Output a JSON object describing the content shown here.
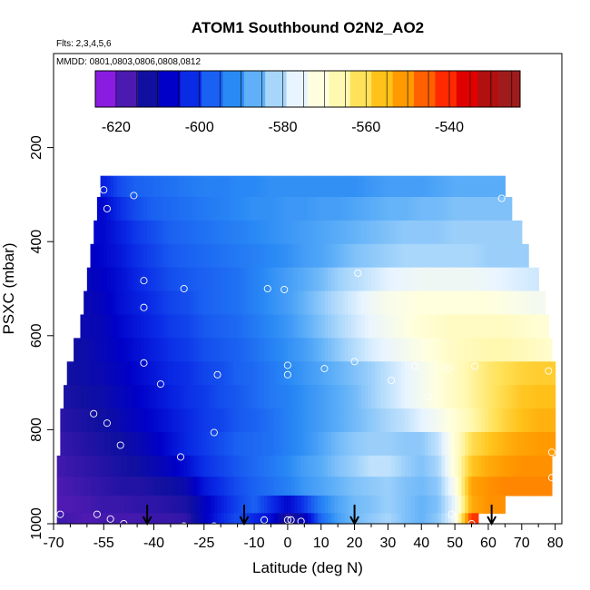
{
  "chart_data": {
    "type": "heatmap",
    "title": "ATOM1 Southbound O2N2_AO2",
    "subtitle_flights": "Flts: 2,3,4,5,6",
    "subtitle_dates": "MMDD: 0801,0803,0806,0808,0812",
    "xlabel": "Latitude (deg N)",
    "ylabel": "PSXC (mbar)",
    "xlim": [
      -70,
      82
    ],
    "ylim": [
      1000,
      0
    ],
    "x_ticks": [
      -70,
      -55,
      -40,
      -25,
      -10,
      0,
      10,
      20,
      30,
      40,
      50,
      60,
      70,
      80
    ],
    "x_tick_labels": [
      "-70",
      "-55",
      "-40",
      "-25",
      "-10",
      "0",
      "10",
      "20",
      "30",
      "40",
      "50",
      "60",
      "70",
      "80"
    ],
    "x_minor_ticks": [
      -65,
      -60,
      -50,
      -45,
      -35,
      -30,
      -20,
      -15,
      -5,
      5,
      15,
      25,
      35,
      45,
      55,
      65,
      75
    ],
    "y_ticks": [
      200,
      400,
      600,
      800,
      1000
    ],
    "y_tick_labels": [
      "200",
      "400",
      "600",
      "800",
      "1000"
    ],
    "colorbar": {
      "range": [
        -625,
        -523
      ],
      "ticks": [
        -620,
        -600,
        -580,
        -560,
        -540
      ],
      "tick_labels": [
        "-620",
        "-600",
        "-580",
        "-560",
        "-540"
      ],
      "colors": [
        "#8a1be0",
        "#4b1ab0",
        "#1010a0",
        "#0000c8",
        "#0a2be6",
        "#1a60f2",
        "#2a8af5",
        "#5fb0f8",
        "#a8d6fb",
        "#e8f4ff",
        "#ffffe0",
        "#fff8b0",
        "#ffe25a",
        "#ffc21a",
        "#ff9a00",
        "#ff6000",
        "#ff2a00",
        "#e00000",
        "#b01010",
        "#a01c1c"
      ]
    },
    "columns_lat": [
      -70,
      -65,
      -60,
      -55,
      -50,
      -45,
      -40,
      -35,
      -30,
      -25,
      -20,
      -15,
      -10,
      -5,
      0,
      5,
      10,
      15,
      20,
      25,
      30,
      35,
      40,
      45,
      50,
      55,
      60,
      65,
      70,
      75,
      80
    ],
    "rows": [
      {
        "p": 280,
        "lat_min": -56,
        "lat_max": 65,
        "values": [
          null,
          null,
          null,
          -605,
          -600,
          -598,
          -597,
          -596,
          -595,
          -594,
          -594,
          -593,
          -593,
          -592,
          -592,
          -592,
          -592,
          -592,
          -592,
          -591,
          -590,
          -590,
          -590,
          -589,
          -588,
          -588,
          -588,
          null,
          null,
          null,
          null
        ]
      },
      {
        "p": 330,
        "lat_min": -57,
        "lat_max": 67,
        "values": [
          null,
          null,
          null,
          -608,
          -603,
          -600,
          -598,
          -597,
          -596,
          -595,
          -594,
          -593,
          -592,
          -592,
          -591,
          -591,
          -590,
          -590,
          -589,
          -588,
          -587,
          -587,
          -586,
          -586,
          -585,
          -585,
          -585,
          -585,
          null,
          null,
          null
        ]
      },
      {
        "p": 380,
        "lat_min": -58,
        "lat_max": 70,
        "values": [
          null,
          null,
          null,
          -608,
          -605,
          -602,
          -600,
          -598,
          -597,
          -596,
          -595,
          -594,
          -593,
          -592,
          -591,
          -590,
          -589,
          -588,
          -587,
          -586,
          -585,
          -584,
          -584,
          -584,
          -583,
          -583,
          -583,
          -583,
          -583,
          null,
          null
        ]
      },
      {
        "p": 430,
        "lat_min": -59,
        "lat_max": 72,
        "values": [
          null,
          null,
          -610,
          -608,
          -606,
          -603,
          -601,
          -599,
          -598,
          -597,
          -596,
          -595,
          -594,
          -593,
          -592,
          -590,
          -589,
          -587,
          -585,
          -584,
          -583,
          -582,
          -582,
          -582,
          -582,
          -582,
          -583,
          -583,
          -583,
          -583,
          null
        ]
      },
      {
        "p": 480,
        "lat_min": -60,
        "lat_max": 75,
        "values": [
          null,
          null,
          -611,
          -609,
          -607,
          -604,
          -602,
          -600,
          -599,
          -598,
          -597,
          -596,
          -594,
          -592,
          -590,
          -588,
          -586,
          -583,
          -581,
          -579,
          -577,
          -576,
          -575,
          -575,
          -575,
          -575,
          -576,
          -577,
          -578,
          -579,
          null
        ]
      },
      {
        "p": 530,
        "lat_min": -61,
        "lat_max": 77,
        "values": [
          null,
          null,
          -612,
          -610,
          -607,
          -605,
          -603,
          -601,
          -600,
          -598,
          -597,
          -596,
          -594,
          -592,
          -590,
          -587,
          -584,
          -581,
          -578,
          -575,
          -573,
          -572,
          -571,
          -571,
          -571,
          -571,
          -571,
          -572,
          -573,
          -574,
          null
        ]
      },
      {
        "p": 580,
        "lat_min": -62,
        "lat_max": 78,
        "values": [
          null,
          -613,
          -612,
          -611,
          -608,
          -606,
          -604,
          -602,
          -601,
          -599,
          -598,
          -597,
          -595,
          -593,
          -591,
          -588,
          -585,
          -582,
          -579,
          -576,
          -574,
          -572,
          -570,
          -569,
          -568,
          -568,
          -568,
          -568,
          -569,
          -570,
          null
        ]
      },
      {
        "p": 630,
        "lat_min": -64,
        "lat_max": 79,
        "values": [
          null,
          -614,
          -613,
          -611,
          -609,
          -607,
          -605,
          -603,
          -602,
          -600,
          -599,
          -598,
          -596,
          -594,
          -592,
          -590,
          -587,
          -584,
          -581,
          -578,
          -576,
          -574,
          -572,
          -570,
          -568,
          -567,
          -566,
          -566,
          -567,
          -568,
          -570
        ]
      },
      {
        "p": 680,
        "lat_min": -66,
        "lat_max": 80,
        "values": [
          -615,
          -614,
          -613,
          -612,
          -610,
          -608,
          -606,
          -604,
          -603,
          -601,
          -600,
          -598,
          -597,
          -595,
          -593,
          -591,
          -589,
          -587,
          -585,
          -583,
          -580,
          -577,
          -574,
          -571,
          -568,
          -565,
          -562,
          -560,
          -558,
          -557,
          -557
        ]
      },
      {
        "p": 730,
        "lat_min": -67,
        "lat_max": 80,
        "values": [
          -616,
          -615,
          -614,
          -613,
          -611,
          -609,
          -607,
          -605,
          -603,
          -602,
          -600,
          -599,
          -597,
          -595,
          -594,
          -592,
          -590,
          -588,
          -586,
          -583,
          -580,
          -577,
          -574,
          -571,
          -568,
          -565,
          -562,
          -559,
          -556,
          -555,
          -555
        ]
      },
      {
        "p": 780,
        "lat_min": -68,
        "lat_max": 80,
        "values": [
          -617,
          -616,
          -615,
          -614,
          -612,
          -610,
          -608,
          -606,
          -604,
          -602,
          -601,
          -599,
          -598,
          -596,
          -594,
          -592,
          -590,
          -588,
          -586,
          -584,
          -582,
          -580,
          -577,
          -574,
          -570,
          -566,
          -562,
          -558,
          -555,
          -553,
          -553
        ]
      },
      {
        "p": 830,
        "lat_min": -68,
        "lat_max": 80,
        "values": [
          -618,
          -617,
          -616,
          -615,
          -614,
          -612,
          -610,
          -607,
          -604,
          -602,
          -600,
          -598,
          -597,
          -596,
          -594,
          -592,
          -589,
          -586,
          -584,
          -583,
          -583,
          -584,
          -584,
          -580,
          -570,
          -560,
          -556,
          -553,
          -551,
          -550,
          -550
        ]
      },
      {
        "p": 880,
        "lat_min": -69,
        "lat_max": 79,
        "values": [
          -619,
          -618,
          -617,
          -616,
          -615,
          -614,
          -612,
          -610,
          -607,
          -603,
          -601,
          -599,
          -597,
          -595,
          -593,
          -590,
          -588,
          -585,
          -583,
          -580,
          -580,
          -583,
          -585,
          -582,
          -570,
          -556,
          -552,
          -550,
          -549,
          -549,
          null
        ]
      },
      {
        "p": 920,
        "lat_min": -69,
        "lat_max": 79,
        "values": [
          -620,
          -619,
          -618,
          -617,
          -616,
          -616,
          -615,
          -614,
          -612,
          -606,
          -603,
          -600,
          -598,
          -596,
          -594,
          -591,
          -589,
          -587,
          -585,
          -584,
          -583,
          -585,
          -586,
          -584,
          -573,
          -551,
          -549,
          -548,
          -548,
          -548,
          null
        ]
      },
      {
        "p": 960,
        "lat_min": -69,
        "lat_max": 67,
        "values": [
          -620,
          -620,
          -619,
          -618,
          -618,
          -617,
          -617,
          -616,
          -615,
          -610,
          -605,
          -601,
          -598,
          -603,
          -608,
          -602,
          -594,
          -589,
          -586,
          -585,
          -583,
          -585,
          -587,
          -585,
          -576,
          -552,
          -549,
          null,
          null,
          null,
          null
        ]
      },
      {
        "p": 995,
        "lat_min": -69,
        "lat_max": 57,
        "values": [
          -618,
          -619,
          -620,
          -619,
          -619,
          -619,
          -618,
          -618,
          -617,
          -610,
          -604,
          -600,
          -604,
          -607,
          -616,
          -611,
          -597,
          -590,
          -586,
          -584,
          -582,
          -585,
          -587,
          -584,
          -575,
          -540,
          null,
          null,
          null,
          null,
          null
        ]
      }
    ],
    "sample_points": [
      {
        "lat": -55,
        "p": 290
      },
      {
        "lat": -46,
        "p": 302
      },
      {
        "lat": -54,
        "p": 330
      },
      {
        "lat": 64,
        "p": 308
      },
      {
        "lat": -43,
        "p": 483
      },
      {
        "lat": -31,
        "p": 500
      },
      {
        "lat": -6,
        "p": 500
      },
      {
        "lat": -1,
        "p": 502
      },
      {
        "lat": 21,
        "p": 467
      },
      {
        "lat": -43,
        "p": 540
      },
      {
        "lat": -43,
        "p": 658
      },
      {
        "lat": -38,
        "p": 703
      },
      {
        "lat": -21,
        "p": 683
      },
      {
        "lat": 0,
        "p": 663
      },
      {
        "lat": 0,
        "p": 683
      },
      {
        "lat": 11,
        "p": 670
      },
      {
        "lat": 20,
        "p": 655
      },
      {
        "lat": 31,
        "p": 695
      },
      {
        "lat": 38,
        "p": 665
      },
      {
        "lat": 42,
        "p": 730
      },
      {
        "lat": 48,
        "p": 670
      },
      {
        "lat": 56,
        "p": 665
      },
      {
        "lat": 78,
        "p": 675
      },
      {
        "lat": -68,
        "p": 673
      },
      {
        "lat": -58,
        "p": 766
      },
      {
        "lat": -54,
        "p": 786
      },
      {
        "lat": -50,
        "p": 833
      },
      {
        "lat": -22,
        "p": 806
      },
      {
        "lat": -32,
        "p": 858
      },
      {
        "lat": 79,
        "p": 848
      },
      {
        "lat": 79,
        "p": 902
      },
      {
        "lat": -68,
        "p": 980
      },
      {
        "lat": -57,
        "p": 980
      },
      {
        "lat": -53,
        "p": 990
      },
      {
        "lat": -49,
        "p": 1000
      },
      {
        "lat": -31,
        "p": 1005
      },
      {
        "lat": -22,
        "p": 1005
      },
      {
        "lat": -7,
        "p": 992
      },
      {
        "lat": 0,
        "p": 992
      },
      {
        "lat": 1,
        "p": 992
      },
      {
        "lat": 4,
        "p": 995
      },
      {
        "lat": 45,
        "p": 1009
      },
      {
        "lat": 49,
        "p": 980
      },
      {
        "lat": 55,
        "p": 1000
      }
    ],
    "arrows_lat": [
      -42,
      -13,
      20,
      61
    ]
  }
}
